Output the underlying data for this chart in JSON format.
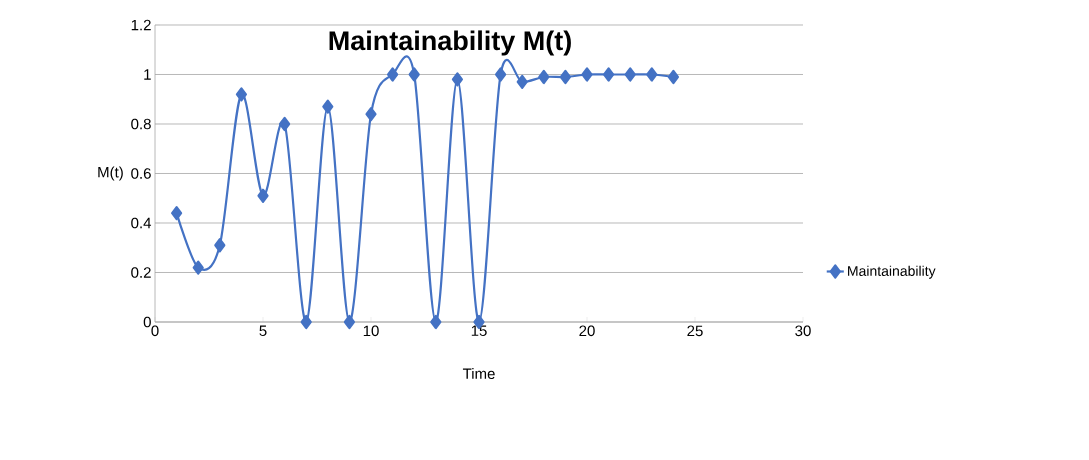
{
  "chart_data": {
    "type": "line",
    "title": "Maintainability M(t)",
    "xlabel": "Time",
    "ylabel": "M(t)",
    "x": [
      1,
      2,
      3,
      4,
      5,
      6,
      7,
      8,
      9,
      10,
      11,
      12,
      13,
      14,
      15,
      16,
      17,
      18,
      19,
      20,
      21,
      22,
      23,
      24
    ],
    "series": [
      {
        "name": "Maintainability",
        "color": "#4472c4",
        "values": [
          0.44,
          0.22,
          0.31,
          0.92,
          0.51,
          0.8,
          0,
          0.87,
          0,
          0.84,
          1,
          1,
          0,
          0.98,
          0,
          1,
          0.97,
          0.99,
          0.99,
          1,
          1,
          1,
          1,
          0.99
        ]
      }
    ],
    "xlim": [
      0,
      30
    ],
    "xticks": [
      0,
      5,
      10,
      15,
      20,
      25,
      30
    ],
    "ylim": [
      0,
      1.2
    ],
    "yticks": [
      0,
      0.2,
      0.4,
      0.6,
      0.8,
      1,
      1.2
    ],
    "grid": "y",
    "legend": "right",
    "marker": "diamond",
    "line_style": "solid"
  }
}
